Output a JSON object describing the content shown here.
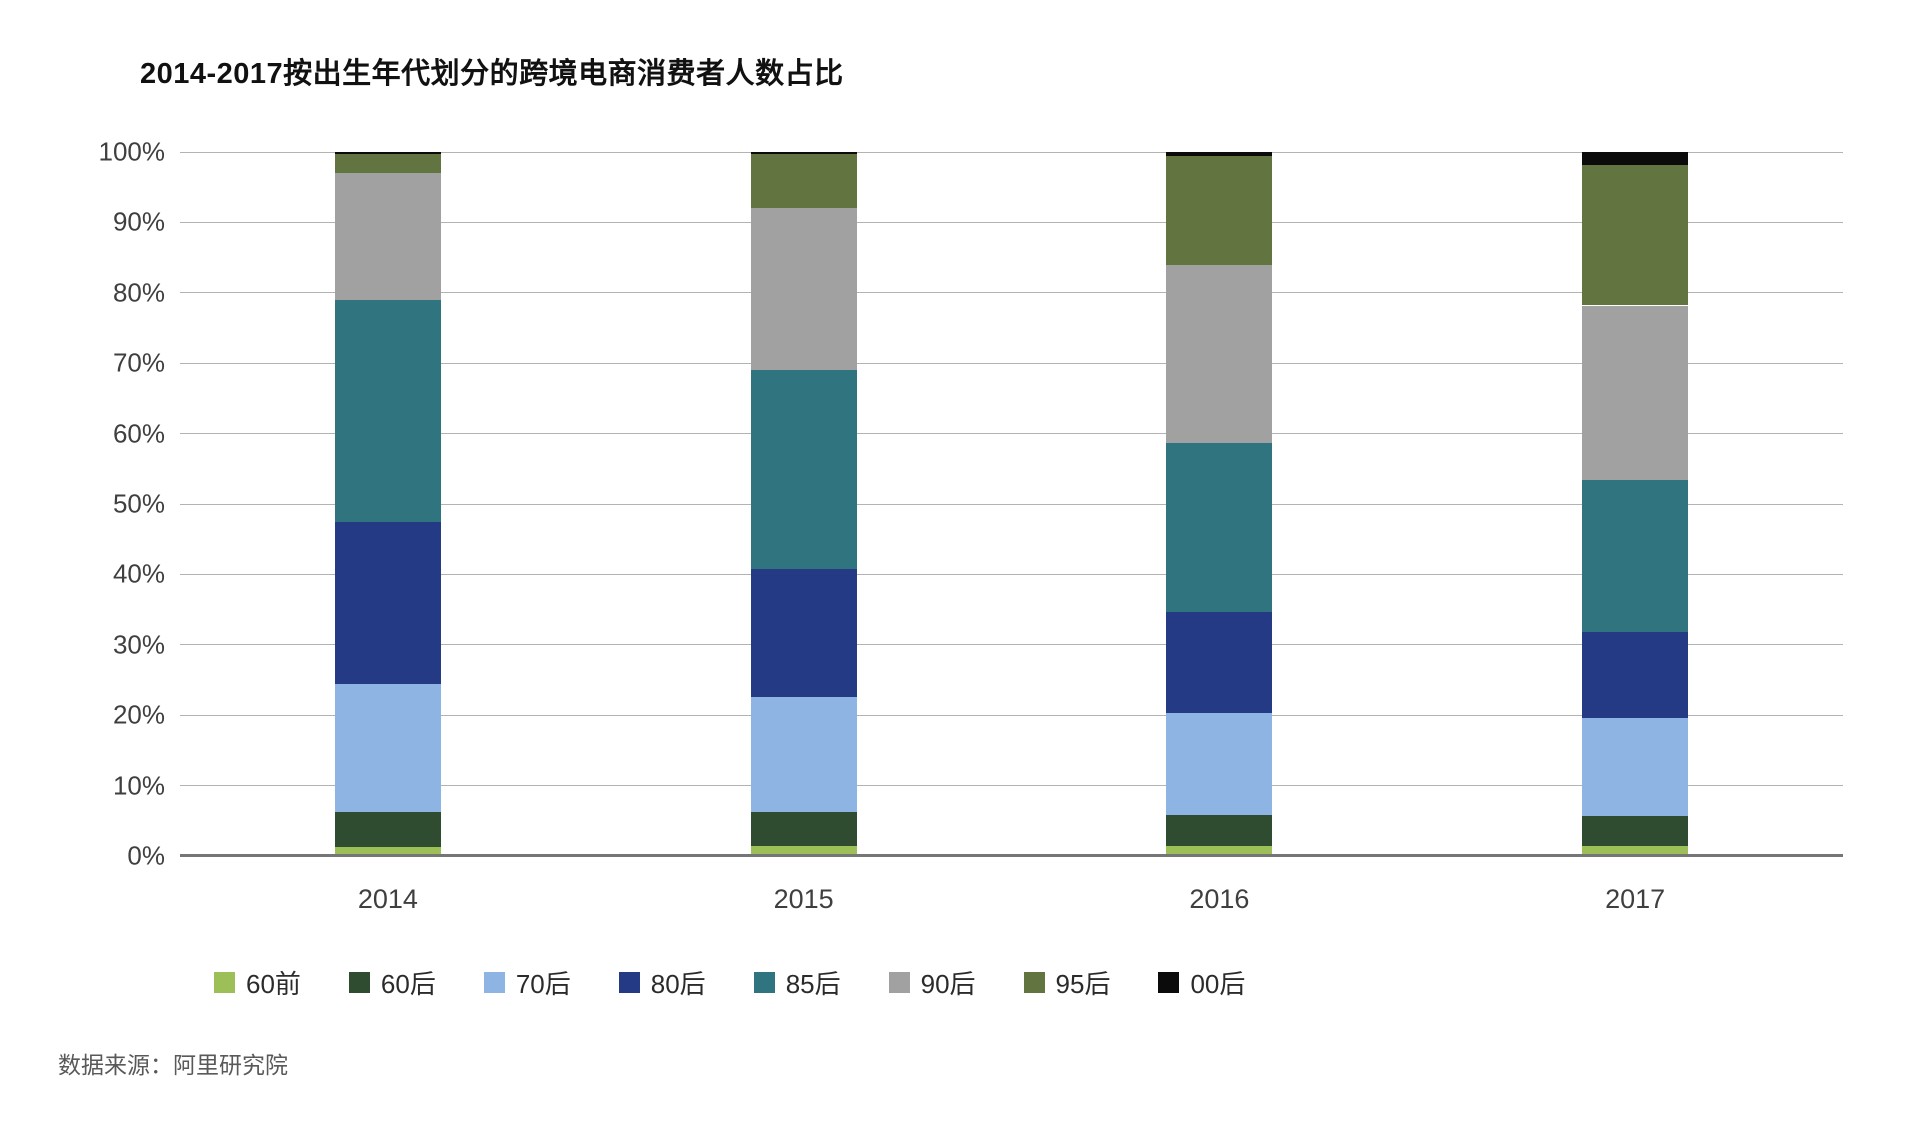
{
  "title": "2014-2017按出生年代划分的跨境电商消费者人数占比",
  "source_note": "数据来源：阿里研究院",
  "colors": {
    "gridline": "#b3b3b3",
    "axis_baseline": "#767676",
    "title_text": "#111111",
    "tick_text": "#3f3f3f",
    "source_text": "#595959"
  },
  "chart_data": {
    "type": "bar",
    "stacked": true,
    "title": "2014-2017按出生年代划分的跨境电商消费者人数占比",
    "categories": [
      "2014",
      "2015",
      "2016",
      "2017"
    ],
    "series": [
      {
        "name": "60前",
        "color": "#9cc057",
        "values": [
          1.3,
          1.4,
          1.4,
          1.4
        ]
      },
      {
        "name": "60后",
        "color": "#2f4c31",
        "values": [
          5.0,
          4.8,
          4.4,
          4.3
        ]
      },
      {
        "name": "70后",
        "color": "#8db4e2",
        "values": [
          18.2,
          16.4,
          14.5,
          13.9
        ]
      },
      {
        "name": "80后",
        "color": "#243a85",
        "values": [
          23.0,
          18.1,
          14.3,
          12.2
        ]
      },
      {
        "name": "85后",
        "color": "#30747f",
        "values": [
          31.5,
          28.3,
          24.1,
          21.6
        ]
      },
      {
        "name": "90后",
        "color": "#a1a1a1",
        "values": [
          18.0,
          23.0,
          25.3,
          24.8
        ]
      },
      {
        "name": "95后",
        "color": "#627440",
        "values": [
          2.7,
          7.7,
          15.5,
          20.0
        ]
      },
      {
        "name": "00后",
        "color": "#0b0b0b",
        "values": [
          0.3,
          0.3,
          0.5,
          1.8
        ]
      }
    ],
    "xlabel": "",
    "ylabel": "",
    "ylim": [
      0,
      100
    ],
    "ytick_step": 10,
    "yticks": [
      "0%",
      "10%",
      "20%",
      "30%",
      "40%",
      "50%",
      "60%",
      "70%",
      "80%",
      "90%",
      "100%"
    ],
    "grid": true,
    "legend_position": "bottom",
    "source": "数据来源：阿里研究院"
  }
}
